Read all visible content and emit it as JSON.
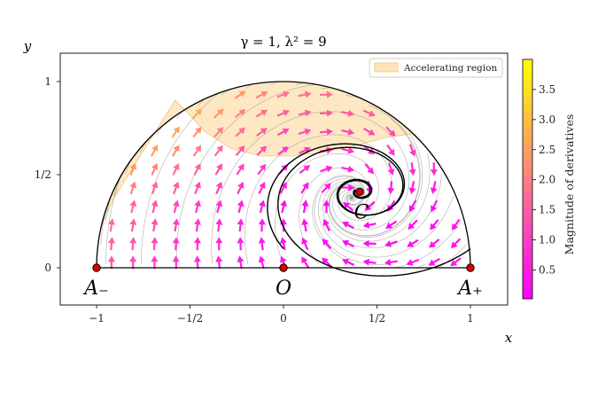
{
  "chart_data": {
    "type": "phase_portrait_quiver",
    "title": "γ = 1,  λ² = 9",
    "xlabel": "x",
    "ylabel": "y",
    "xlim": [
      -1.2,
      1.2
    ],
    "ylim": [
      -0.2,
      1.15
    ],
    "xticks": [
      {
        "value": -1,
        "label": "−1"
      },
      {
        "value": -0.5,
        "label": "−1/2"
      },
      {
        "value": 0,
        "label": "0"
      },
      {
        "value": 0.5,
        "label": "1/2"
      },
      {
        "value": 1,
        "label": "1"
      }
    ],
    "yticks": [
      {
        "value": 0,
        "label": "0"
      },
      {
        "value": 0.5,
        "label": "1/2"
      },
      {
        "value": 1,
        "label": "1"
      }
    ],
    "grid": false,
    "legend": {
      "placement": "top-right",
      "entries": [
        {
          "label": "Accelerating region",
          "color": "#fde4b8"
        }
      ]
    },
    "critical_points": [
      {
        "name": "A₋",
        "x": -1,
        "y": 0
      },
      {
        "name": "O",
        "x": 0,
        "y": 0
      },
      {
        "name": "A₊",
        "x": 1,
        "y": 0
      },
      {
        "name": "C",
        "x": 0.408,
        "y": 0.408
      }
    ],
    "colorbar": {
      "label": "Magnitude of derivatives",
      "range": [
        0.02,
        4.0
      ],
      "ticks": [
        0.5,
        1.0,
        1.5,
        2.0,
        2.5,
        3.0,
        3.5
      ],
      "tick_labels": [
        "0.5",
        "1.0",
        "1.5",
        "2.0",
        "2.5",
        "3.0",
        "3.5"
      ],
      "colormap": "spring"
    }
  },
  "colors": {
    "accelerating_fill": "#fde4b8",
    "accelerating_edge": "#f0b45a",
    "point_fill": "#dd0000",
    "boundary": "#000000",
    "streamline": "#9a9a9a"
  }
}
